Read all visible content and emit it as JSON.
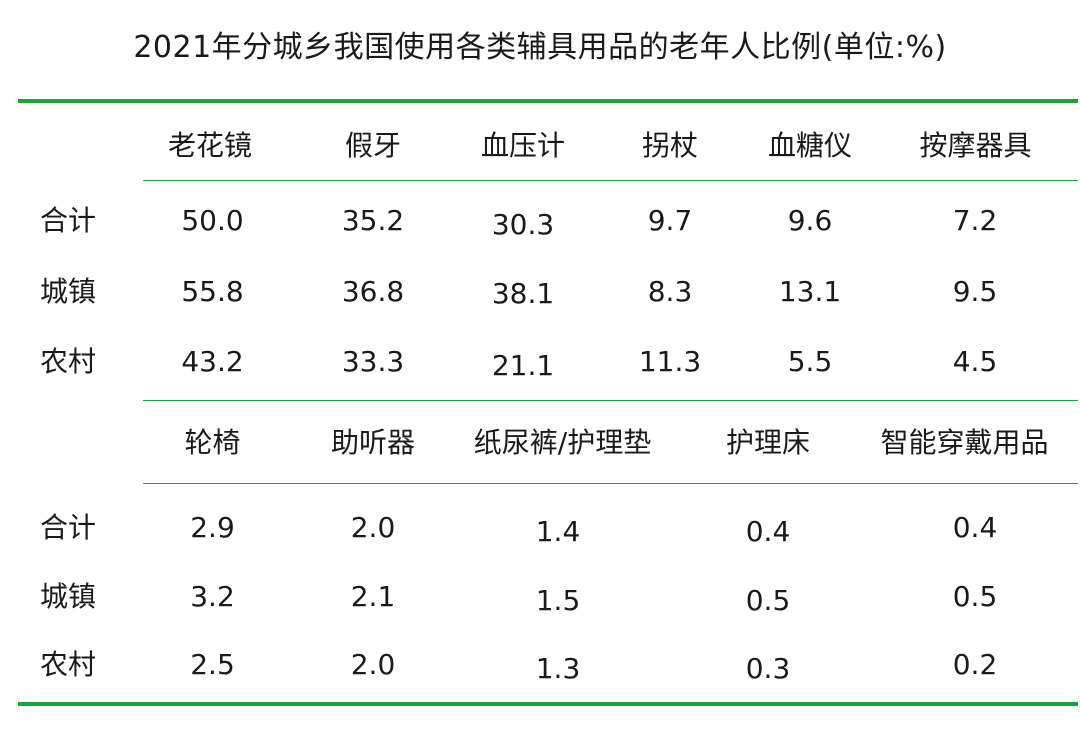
{
  "title": "2021年分城乡我国使用各类辅具用品的老年人比例(单位:%)",
  "colors": {
    "accent": "#17a534"
  },
  "table1": {
    "headers": [
      "老花镜",
      "假牙",
      "血压计",
      "拐杖",
      "血糖仪",
      "按摩器具"
    ],
    "rows": [
      {
        "label": "合计",
        "values": [
          "50.0",
          "35.2",
          "30.3",
          "9.7",
          "9.6",
          "7.2"
        ]
      },
      {
        "label": "城镇",
        "values": [
          "55.8",
          "36.8",
          "38.1",
          "8.3",
          "13.1",
          "9.5"
        ]
      },
      {
        "label": "农村",
        "values": [
          "43.2",
          "33.3",
          "21.1",
          "11.3",
          "5.5",
          "4.5"
        ]
      }
    ]
  },
  "table2": {
    "headers": [
      "轮椅",
      "助听器",
      "纸尿裤/护理垫",
      "护理床",
      "智能穿戴用品"
    ],
    "rows": [
      {
        "label": "合计",
        "values": [
          "2.9",
          "2.0",
          "1.4",
          "0.4",
          "0.4"
        ]
      },
      {
        "label": "城镇",
        "values": [
          "3.2",
          "2.1",
          "1.5",
          "0.5",
          "0.5"
        ]
      },
      {
        "label": "农村",
        "values": [
          "2.5",
          "2.0",
          "1.3",
          "0.3",
          "0.2"
        ]
      }
    ]
  }
}
